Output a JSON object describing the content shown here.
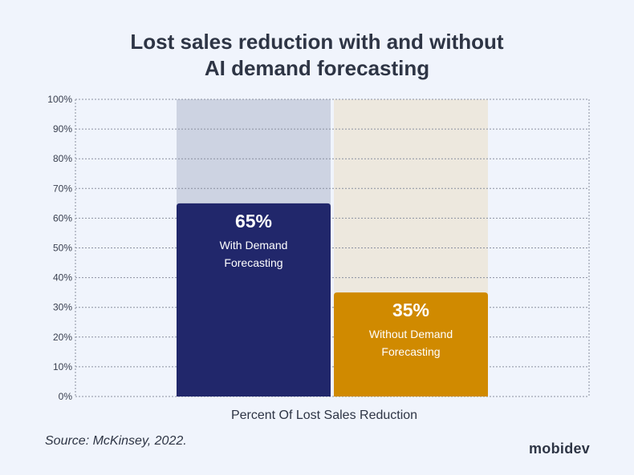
{
  "chart_data": {
    "type": "bar",
    "title": "Lost sales reduction with and without AI demand forecasting",
    "title_lines": [
      "Lost sales reduction with and without",
      "AI demand forecasting"
    ],
    "xlabel": "Percent Of Lost Sales Reduction",
    "ylabel": "",
    "ylim": [
      0,
      100
    ],
    "yticks": [
      "0%",
      "10%",
      "20%",
      "30%",
      "40%",
      "50%",
      "60%",
      "70%",
      "80%",
      "90%",
      "100%"
    ],
    "grid": true,
    "categories": [
      "With Demand Forecasting",
      "Without Demand Forecasting"
    ],
    "category_lines": [
      [
        "With Demand",
        "Forecasting"
      ],
      [
        "Without Demand",
        "Forecasting"
      ]
    ],
    "values": [
      65,
      35
    ],
    "value_labels": [
      "65%",
      "35%"
    ],
    "colors": [
      "#21276b",
      "#d08a00"
    ],
    "background_colors": [
      "#cdd3e2",
      "#ede8de"
    ]
  },
  "source": "Source: McKinsey, 2022.",
  "logo": "mobidev"
}
